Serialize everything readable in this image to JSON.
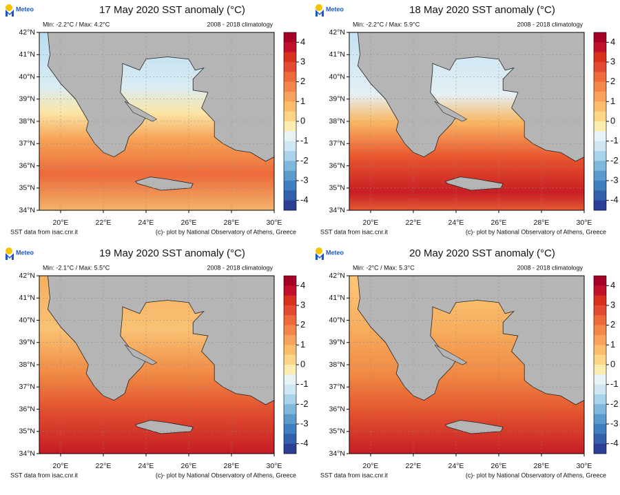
{
  "panels": [
    {
      "title": "17 May 2020 SST anomaly (°C)",
      "minmax": "Min: -2.2°C / Max: 4.2°C",
      "climatology": "2008 - 2018 climatology",
      "source": "SST data from isac.cnr.it",
      "credit": "(c)- plot by National Observatory of Athens, Greece",
      "logo": "Meteo"
    },
    {
      "title": "18 May 2020 SST anomaly (°C)",
      "minmax": "Min: -2.2°C / Max: 5.9°C",
      "climatology": "2008 - 2018 climatology",
      "source": "SST data from isac.cnr.it",
      "credit": "(c)- plot by National Observatory of Athens, Greece",
      "logo": "Meteo"
    },
    {
      "title": "19 May 2020 SST anomaly (°C)",
      "minmax": "Min: -2.1°C / Max: 5.5°C",
      "climatology": "2008 - 2018 climatology",
      "source": "SST data from isac.cnr.it",
      "credit": "(c)- plot by National Observatory of Athens, Greece",
      "logo": "Meteo"
    },
    {
      "title": "20 May 2020 SST anomaly (°C)",
      "minmax": "Min: -2°C / Max: 5.3°C",
      "climatology": "2008 - 2018 climatology",
      "source": "SST data from isac.cnr.it",
      "credit": "(c)- plot by National Observatory of Athens, Greece",
      "logo": "Meteo"
    }
  ],
  "lat_labels": [
    "42°N",
    "41°N",
    "40°N",
    "39°N",
    "38°N",
    "37°N",
    "36°N",
    "35°N",
    "34°N"
  ],
  "lon_labels": [
    "20°E",
    "22°E",
    "24°E",
    "26°E",
    "28°E",
    "30°E"
  ],
  "colorbar": {
    "ticks": [
      4,
      3,
      2,
      1,
      0,
      -1,
      -2,
      -3,
      -4
    ],
    "colors": [
      "#a50026",
      "#c0102a",
      "#d7301f",
      "#e34a33",
      "#ef6a3a",
      "#f4864a",
      "#f8a15a",
      "#fbbc6c",
      "#fdd585",
      "#fdecb0",
      "#e8f3f8",
      "#cfe7f2",
      "#a9d3ea",
      "#7fb8dc",
      "#5a9bcc",
      "#3f7fbd",
      "#3360aa",
      "#2c3f96"
    ]
  }
}
